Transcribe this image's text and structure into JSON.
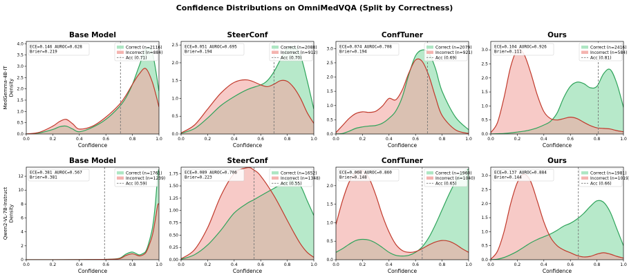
{
  "suptitle": "Confidence Distributions on OmniMedVQA (Split by Correctness)",
  "row_labels": [
    "MedGemma-4B-IT\nDensity",
    "Qwen2-VL-7B-Instruct\nDensity"
  ],
  "colors": {
    "correct_fill": "#9fe2b8",
    "correct_line": "#2ea35a",
    "incorrect_fill": "#f2a7a2",
    "incorrect_line": "#c0392b",
    "acc_line": "#777777"
  },
  "chart_data": [
    {
      "type": "area",
      "row": 0,
      "col": 0,
      "title": "Base Model",
      "xlabel": "Confidence",
      "ylabel": "",
      "xlim": [
        0,
        1
      ],
      "ylim": [
        0,
        4.1
      ],
      "xticks": [
        "0.0",
        "0.2",
        "0.4",
        "0.6",
        "0.8",
        "1.0"
      ],
      "yticks": [
        0,
        0.5,
        1.0,
        1.5,
        2.0,
        2.5,
        3.0,
        3.5,
        4.0
      ],
      "ytick_labels": [
        "0.0",
        "0.5",
        "1.0",
        "1.5",
        "2.0",
        "2.5",
        "3.0",
        "3.5",
        "4.0"
      ],
      "metrics": [
        "ECE=0.146  AUROC=0.628",
        "Brier=0.219"
      ],
      "acc": 0.71,
      "legend": [
        "Correct (n=2116)",
        "Incorrect (n=884)",
        "Acc (0.71)"
      ],
      "x": [
        0,
        0.1,
        0.2,
        0.25,
        0.3,
        0.35,
        0.4,
        0.5,
        0.6,
        0.7,
        0.75,
        0.8,
        0.85,
        0.9,
        0.95,
        1.0
      ],
      "series": [
        {
          "name": "Correct (n=2116)",
          "values": [
            0,
            0.05,
            0.2,
            0.32,
            0.35,
            0.22,
            0.1,
            0.3,
            0.65,
            1.2,
            1.6,
            2.2,
            3.0,
            3.75,
            3.6,
            1.9
          ]
        },
        {
          "name": "Incorrect (n=884)",
          "values": [
            0,
            0.08,
            0.35,
            0.55,
            0.65,
            0.45,
            0.22,
            0.35,
            0.75,
            1.3,
            1.7,
            2.2,
            2.65,
            2.9,
            2.3,
            1.2
          ]
        }
      ]
    },
    {
      "type": "area",
      "row": 0,
      "col": 1,
      "title": "SteerConf",
      "xlabel": "Confidence",
      "ylabel": "",
      "xlim": [
        0,
        1
      ],
      "ylim": [
        0,
        2.6
      ],
      "xticks": [
        "0.0",
        "0.2",
        "0.4",
        "0.6",
        "0.8",
        "1.0"
      ],
      "yticks": [
        0,
        0.5,
        1.0,
        1.5,
        2.0,
        2.5
      ],
      "ytick_labels": [
        "0.0",
        "0.5",
        "1.0",
        "1.5",
        "2.0",
        "2.5"
      ],
      "metrics": [
        "ECE=0.051  AUROC=0.695",
        "Brier=0.194"
      ],
      "acc": 0.7,
      "legend": [
        "Correct (n=2088)",
        "Incorrect (n=912)",
        "Acc (0.70)"
      ],
      "x": [
        0,
        0.1,
        0.2,
        0.3,
        0.4,
        0.5,
        0.6,
        0.65,
        0.7,
        0.75,
        0.8,
        0.85,
        0.9,
        0.95,
        1.0
      ],
      "series": [
        {
          "name": "Correct (n=2088)",
          "values": [
            0.02,
            0.15,
            0.45,
            0.8,
            1.05,
            1.25,
            1.38,
            1.5,
            1.75,
            2.1,
            2.4,
            2.45,
            2.2,
            1.5,
            0.7
          ]
        },
        {
          "name": "Incorrect (n=912)",
          "values": [
            0.03,
            0.25,
            0.7,
            1.15,
            1.45,
            1.52,
            1.38,
            1.33,
            1.4,
            1.5,
            1.48,
            1.3,
            1.0,
            0.6,
            0.3
          ]
        }
      ]
    },
    {
      "type": "area",
      "row": 0,
      "col": 2,
      "title": "ConfTuner",
      "xlabel": "Confidence",
      "ylabel": "",
      "xlim": [
        0,
        1
      ],
      "ylim": [
        0,
        3.25
      ],
      "xticks": [
        "0.0",
        "0.2",
        "0.4",
        "0.6",
        "0.8",
        "1.0"
      ],
      "yticks": [
        0,
        0.5,
        1.0,
        1.5,
        2.0,
        2.5,
        3.0
      ],
      "ytick_labels": [
        "0.0",
        "0.5",
        "1.0",
        "1.5",
        "2.0",
        "2.5",
        "3.0"
      ],
      "metrics": [
        "ECE=0.074  AUROC=0.708",
        "Brier=0.194"
      ],
      "acc": 0.69,
      "legend": [
        "Correct (n=2079)",
        "Incorrect (n=921)",
        "Acc (0.69)"
      ],
      "x": [
        0,
        0.05,
        0.1,
        0.15,
        0.2,
        0.25,
        0.3,
        0.35,
        0.4,
        0.45,
        0.5,
        0.55,
        0.6,
        0.65,
        0.7,
        0.75,
        0.8,
        0.9,
        1.0
      ],
      "series": [
        {
          "name": "Correct (n=2079)",
          "values": [
            0,
            0.02,
            0.1,
            0.2,
            0.25,
            0.28,
            0.3,
            0.38,
            0.55,
            0.8,
            1.3,
            2.1,
            2.75,
            2.95,
            2.85,
            2.3,
            1.5,
            0.6,
            0.15
          ]
        },
        {
          "name": "Incorrect (n=921)",
          "values": [
            0.05,
            0.3,
            0.55,
            0.72,
            0.78,
            0.76,
            0.8,
            0.98,
            1.25,
            1.2,
            1.55,
            2.15,
            2.6,
            2.55,
            2.05,
            1.3,
            0.65,
            0.15,
            0.02
          ]
        }
      ]
    },
    {
      "type": "area",
      "row": 0,
      "col": 3,
      "title": "Ours",
      "xlabel": "Confidence",
      "ylabel": "",
      "xlim": [
        0,
        1
      ],
      "ylim": [
        0,
        3.3
      ],
      "xticks": [
        "0.0",
        "0.2",
        "0.4",
        "0.6",
        "0.8",
        "1.0"
      ],
      "yticks": [
        0,
        0.5,
        1.0,
        1.5,
        2.0,
        2.5,
        3.0
      ],
      "ytick_labels": [
        "0.0",
        "0.5",
        "1.0",
        "1.5",
        "2.0",
        "2.5",
        "3.0"
      ],
      "metrics": [
        "ECE=0.104  AUROC=0.926",
        "Brier=0.111"
      ],
      "acc": 0.81,
      "legend": [
        "Correct (n=2416)",
        "Incorrect (n=584)",
        "Acc (0.81)"
      ],
      "x": [
        0,
        0.05,
        0.1,
        0.15,
        0.2,
        0.25,
        0.3,
        0.35,
        0.4,
        0.45,
        0.5,
        0.55,
        0.6,
        0.65,
        0.7,
        0.75,
        0.8,
        0.85,
        0.9,
        0.95,
        1.0
      ],
      "series": [
        {
          "name": "Correct (n=2416)",
          "values": [
            0,
            0.01,
            0.02,
            0.04,
            0.07,
            0.1,
            0.15,
            0.22,
            0.32,
            0.45,
            0.75,
            1.3,
            1.7,
            1.85,
            1.8,
            1.65,
            1.7,
            2.15,
            2.3,
            1.8,
            0.95
          ]
        },
        {
          "name": "Incorrect (n=584)",
          "values": [
            0.05,
            0.4,
            1.3,
            2.4,
            3.0,
            2.85,
            2.2,
            1.4,
            0.8,
            0.55,
            0.5,
            0.55,
            0.6,
            0.55,
            0.42,
            0.3,
            0.22,
            0.2,
            0.18,
            0.12,
            0.08
          ]
        }
      ]
    },
    {
      "type": "area",
      "row": 1,
      "col": 0,
      "title": "Base Model",
      "xlabel": "Confidence",
      "ylabel": "",
      "xlim": [
        0,
        1
      ],
      "ylim": [
        0,
        13.3
      ],
      "xticks": [
        "0.0",
        "0.2",
        "0.4",
        "0.6",
        "0.8",
        "1.0"
      ],
      "yticks": [
        0,
        2,
        4,
        6,
        8,
        10,
        12
      ],
      "ytick_labels": [
        "0",
        "2",
        "4",
        "6",
        "8",
        "10",
        "12"
      ],
      "metrics": [
        "ECE=0.381  AUROC=0.567",
        "Brier=0.381"
      ],
      "acc": 0.59,
      "legend": [
        "Correct (n=1761)",
        "Incorrect (n=1239)",
        "Acc (0.59)"
      ],
      "x": [
        0,
        0.2,
        0.4,
        0.6,
        0.7,
        0.75,
        0.8,
        0.85,
        0.88,
        0.9,
        0.92,
        0.95,
        0.97,
        0.99,
        1.0
      ],
      "series": [
        {
          "name": "Correct (n=1761)",
          "values": [
            0,
            0,
            0.02,
            0.05,
            0.2,
            0.8,
            1.1,
            0.7,
            0.9,
            1.2,
            2.2,
            4.5,
            7.5,
            12.0,
            13.0
          ]
        },
        {
          "name": "Incorrect (n=1239)",
          "values": [
            0,
            0,
            0.02,
            0.05,
            0.15,
            0.6,
            0.85,
            0.55,
            0.7,
            1.0,
            1.8,
            3.5,
            5.5,
            7.8,
            8.0
          ]
        }
      ]
    },
    {
      "type": "area",
      "row": 1,
      "col": 1,
      "title": "SteerConf",
      "xlabel": "Confidence",
      "ylabel": "",
      "xlim": [
        0,
        1
      ],
      "ylim": [
        0,
        1.88
      ],
      "xticks": [
        "0.0",
        "0.2",
        "0.4",
        "0.6",
        "0.8",
        "1.0"
      ],
      "yticks": [
        0,
        0.25,
        0.5,
        0.75,
        1.0,
        1.25,
        1.5,
        1.75
      ],
      "ytick_labels": [
        "0.00",
        "0.25",
        "0.50",
        "0.75",
        "1.00",
        "1.25",
        "1.50",
        "1.75"
      ],
      "metrics": [
        "ECE=0.089  AUROC=0.706",
        "Brier=0.223"
      ],
      "acc": 0.55,
      "legend": [
        "Correct (n=1652)",
        "Incorrect (n=1348)",
        "Acc (0.55)"
      ],
      "x": [
        0,
        0.1,
        0.2,
        0.3,
        0.4,
        0.5,
        0.55,
        0.6,
        0.7,
        0.8,
        0.85,
        0.9,
        0.95,
        1.0
      ],
      "series": [
        {
          "name": "Correct (n=1652)",
          "values": [
            0.01,
            0.1,
            0.3,
            0.6,
            0.95,
            1.15,
            1.22,
            1.3,
            1.45,
            1.6,
            1.6,
            1.5,
            1.2,
            0.9
          ]
        },
        {
          "name": "Incorrect (n=1348)",
          "values": [
            0.02,
            0.2,
            0.65,
            1.3,
            1.75,
            1.87,
            1.82,
            1.7,
            1.3,
            0.8,
            0.55,
            0.32,
            0.15,
            0.05
          ]
        }
      ]
    },
    {
      "type": "area",
      "row": 1,
      "col": 2,
      "title": "ConfTuner",
      "xlabel": "Confidence",
      "ylabel": "",
      "xlim": [
        0,
        1
      ],
      "ylim": [
        0,
        2.5
      ],
      "xticks": [
        "0.0",
        "0.2",
        "0.4",
        "0.6",
        "0.8",
        "1.0"
      ],
      "yticks": [
        0,
        0.5,
        1.0,
        1.5,
        2.0
      ],
      "ytick_labels": [
        "0.0",
        "0.5",
        "1.0",
        "1.5",
        "2.0"
      ],
      "metrics": [
        "ECE=0.068  AUROC=0.860",
        "Brier=0.148"
      ],
      "acc": 0.65,
      "legend": [
        "Correct (n=1960)",
        "Incorrect (n=1040)",
        "Acc (0.65)"
      ],
      "x": [
        0,
        0.05,
        0.1,
        0.15,
        0.2,
        0.25,
        0.3,
        0.35,
        0.4,
        0.45,
        0.5,
        0.55,
        0.6,
        0.65,
        0.7,
        0.75,
        0.8,
        0.85,
        0.9,
        0.95,
        1.0
      ],
      "series": [
        {
          "name": "Correct (n=1960)",
          "values": [
            0.2,
            0.3,
            0.42,
            0.52,
            0.55,
            0.53,
            0.45,
            0.33,
            0.2,
            0.12,
            0.1,
            0.12,
            0.2,
            0.35,
            0.6,
            0.95,
            1.35,
            1.75,
            2.1,
            2.35,
            2.45
          ]
        },
        {
          "name": "Incorrect (n=1040)",
          "values": [
            0.95,
            1.6,
            2.1,
            2.35,
            2.4,
            2.2,
            1.75,
            1.2,
            0.75,
            0.42,
            0.25,
            0.2,
            0.22,
            0.3,
            0.4,
            0.48,
            0.52,
            0.5,
            0.42,
            0.3,
            0.2
          ]
        }
      ]
    },
    {
      "type": "area",
      "row": 1,
      "col": 3,
      "title": "Ours",
      "xlabel": "Confidence",
      "ylabel": "",
      "xlim": [
        0,
        1
      ],
      "ylim": [
        0,
        3.3
      ],
      "xticks": [
        "0.0",
        "0.2",
        "0.4",
        "0.6",
        "0.8",
        "1.0"
      ],
      "yticks": [
        0,
        0.5,
        1.0,
        1.5,
        2.0,
        2.5,
        3.0
      ],
      "ytick_labels": [
        "0.0",
        "0.5",
        "1.0",
        "1.5",
        "2.0",
        "2.5",
        "3.0"
      ],
      "metrics": [
        "ECE=0.137  AUROC=0.884",
        "Brier=0.144"
      ],
      "acc": 0.66,
      "legend": [
        "Correct (n=1981)",
        "Incorrect (n=1019)",
        "Acc (0.66)"
      ],
      "x": [
        0,
        0.05,
        0.1,
        0.15,
        0.2,
        0.25,
        0.3,
        0.35,
        0.4,
        0.45,
        0.5,
        0.55,
        0.6,
        0.65,
        0.7,
        0.75,
        0.8,
        0.85,
        0.9,
        0.95,
        1.0
      ],
      "series": [
        {
          "name": "Correct (n=1981)",
          "values": [
            0,
            0.02,
            0.08,
            0.18,
            0.3,
            0.45,
            0.6,
            0.72,
            0.82,
            0.92,
            1.05,
            1.2,
            1.3,
            1.45,
            1.65,
            1.9,
            2.1,
            2.05,
            1.7,
            1.1,
            0.5
          ]
        },
        {
          "name": "Incorrect (n=1019)",
          "values": [
            0.02,
            0.3,
            1.0,
            2.0,
            2.75,
            3.05,
            2.8,
            2.1,
            1.35,
            0.8,
            0.5,
            0.35,
            0.25,
            0.15,
            0.1,
            0.12,
            0.2,
            0.25,
            0.2,
            0.12,
            0.06
          ]
        }
      ]
    }
  ]
}
